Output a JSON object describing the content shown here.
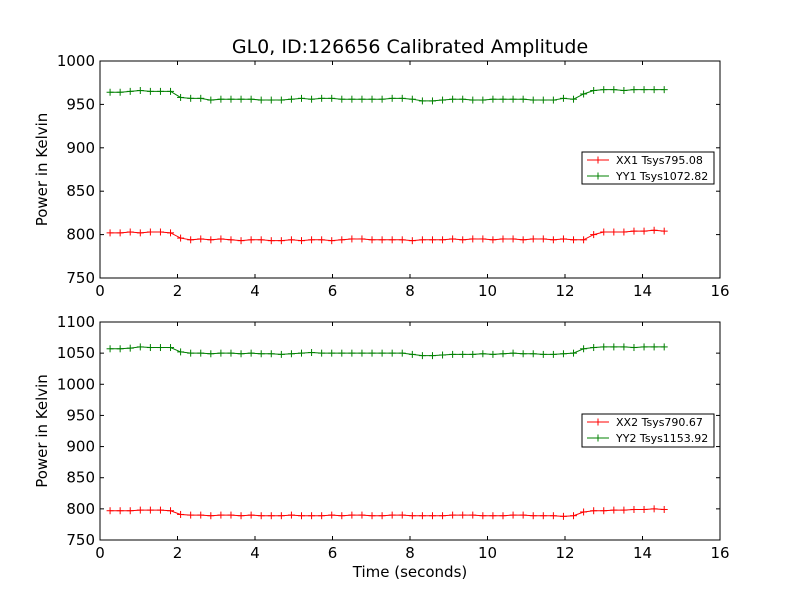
{
  "chart_data": {
    "type": "line",
    "title": "GL0, ID:126656 Calibrated Amplitude",
    "xlabel": "Time (seconds)",
    "colors": {
      "red": "#ff0000",
      "green": "#008000"
    },
    "x_ticks": [
      "0",
      "2",
      "4",
      "6",
      "8",
      "10",
      "12",
      "14",
      "16"
    ],
    "xlim": [
      0,
      16
    ],
    "x": [
      0.26,
      0.52,
      0.78,
      1.04,
      1.3,
      1.56,
      1.82,
      2.08,
      2.34,
      2.6,
      2.86,
      3.12,
      3.38,
      3.64,
      3.9,
      4.16,
      4.42,
      4.68,
      4.94,
      5.2,
      5.46,
      5.72,
      5.98,
      6.24,
      6.5,
      6.76,
      7.02,
      7.28,
      7.54,
      7.8,
      8.06,
      8.32,
      8.58,
      8.84,
      9.1,
      9.36,
      9.62,
      9.88,
      10.14,
      10.4,
      10.66,
      10.92,
      11.18,
      11.44,
      11.7,
      11.96,
      12.22,
      12.48,
      12.74,
      13.0,
      13.26,
      13.52,
      13.78,
      14.04,
      14.3,
      14.56
    ],
    "panels": [
      {
        "ylabel": "Power in Kelvin",
        "ylim": [
          750,
          1000
        ],
        "y_ticks": [
          "750",
          "800",
          "850",
          "900",
          "950",
          "1000"
        ],
        "legend_position": "center-right",
        "series": [
          {
            "name": "XX1 Tsys795.08",
            "color": "red",
            "values": [
              802,
              802,
              803,
              802,
              803,
              803,
              802,
              796,
              794,
              795,
              794,
              795,
              794,
              793,
              794,
              794,
              793,
              793,
              794,
              793,
              794,
              794,
              793,
              794,
              795,
              795,
              794,
              794,
              794,
              794,
              793,
              794,
              794,
              794,
              795,
              794,
              795,
              795,
              794,
              795,
              795,
              794,
              795,
              795,
              794,
              795,
              794,
              794,
              800,
              803,
              803,
              803,
              804,
              804,
              805,
              804
            ]
          },
          {
            "name": "YY1 Tsys1072.82",
            "color": "green",
            "values": [
              964,
              964,
              965,
              966,
              965,
              965,
              965,
              958,
              957,
              957,
              955,
              956,
              956,
              956,
              956,
              955,
              955,
              955,
              956,
              957,
              956,
              957,
              957,
              956,
              956,
              956,
              956,
              956,
              957,
              957,
              956,
              954,
              954,
              955,
              956,
              956,
              955,
              955,
              956,
              956,
              956,
              956,
              955,
              955,
              955,
              957,
              956,
              962,
              966,
              967,
              967,
              966,
              967,
              967,
              967,
              967
            ]
          }
        ]
      },
      {
        "ylabel": "Power in Kelvin",
        "ylim": [
          750,
          1100
        ],
        "y_ticks": [
          "750",
          "800",
          "850",
          "900",
          "950",
          "1000",
          "1050",
          "1100"
        ],
        "legend_position": "center-right",
        "series": [
          {
            "name": "XX2 Tsys790.67",
            "color": "red",
            "values": [
              797,
              797,
              797,
              798,
              798,
              798,
              797,
              791,
              790,
              790,
              789,
              790,
              790,
              789,
              790,
              789,
              789,
              789,
              790,
              789,
              789,
              789,
              790,
              789,
              790,
              790,
              789,
              789,
              790,
              790,
              789,
              789,
              789,
              789,
              790,
              790,
              790,
              789,
              789,
              789,
              790,
              790,
              789,
              789,
              789,
              788,
              789,
              795,
              797,
              797,
              798,
              798,
              799,
              799,
              800,
              799
            ]
          },
          {
            "name": "YY2 Tsys1153.92",
            "color": "green",
            "values": [
              1057,
              1057,
              1058,
              1060,
              1059,
              1059,
              1059,
              1052,
              1050,
              1050,
              1049,
              1050,
              1050,
              1049,
              1050,
              1049,
              1049,
              1048,
              1049,
              1050,
              1051,
              1050,
              1050,
              1050,
              1050,
              1050,
              1050,
              1050,
              1050,
              1050,
              1048,
              1046,
              1046,
              1047,
              1048,
              1048,
              1048,
              1049,
              1048,
              1049,
              1050,
              1049,
              1049,
              1048,
              1048,
              1049,
              1050,
              1057,
              1059,
              1060,
              1060,
              1060,
              1059,
              1060,
              1060,
              1060
            ]
          }
        ]
      }
    ]
  }
}
